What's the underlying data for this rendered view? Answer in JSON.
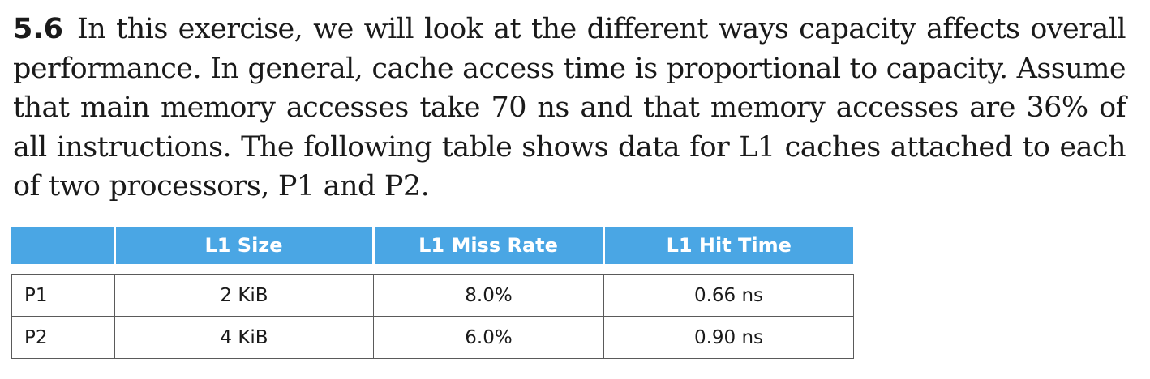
{
  "exercise": {
    "number": "5.6",
    "text": "In this exercise, we will look at the different ways capacity affects overall performance. In general, cache access time is proportional to capacity. Assume that main memory accesses take 70 ns and that memory accesses are 36% of all instructions. The following table shows data for L1 caches attached to each of two processors, P1 and P2."
  },
  "table": {
    "headers": [
      "",
      "L1 Size",
      "L1 Miss Rate",
      "L1 Hit Time"
    ],
    "rows": [
      {
        "label": "P1",
        "size": "2 KiB",
        "miss_rate": "8.0%",
        "hit_time": "0.66 ns"
      },
      {
        "label": "P2",
        "size": "4 KiB",
        "miss_rate": "6.0%",
        "hit_time": "0.90 ns"
      }
    ],
    "header_color": "#4aa6e4"
  }
}
